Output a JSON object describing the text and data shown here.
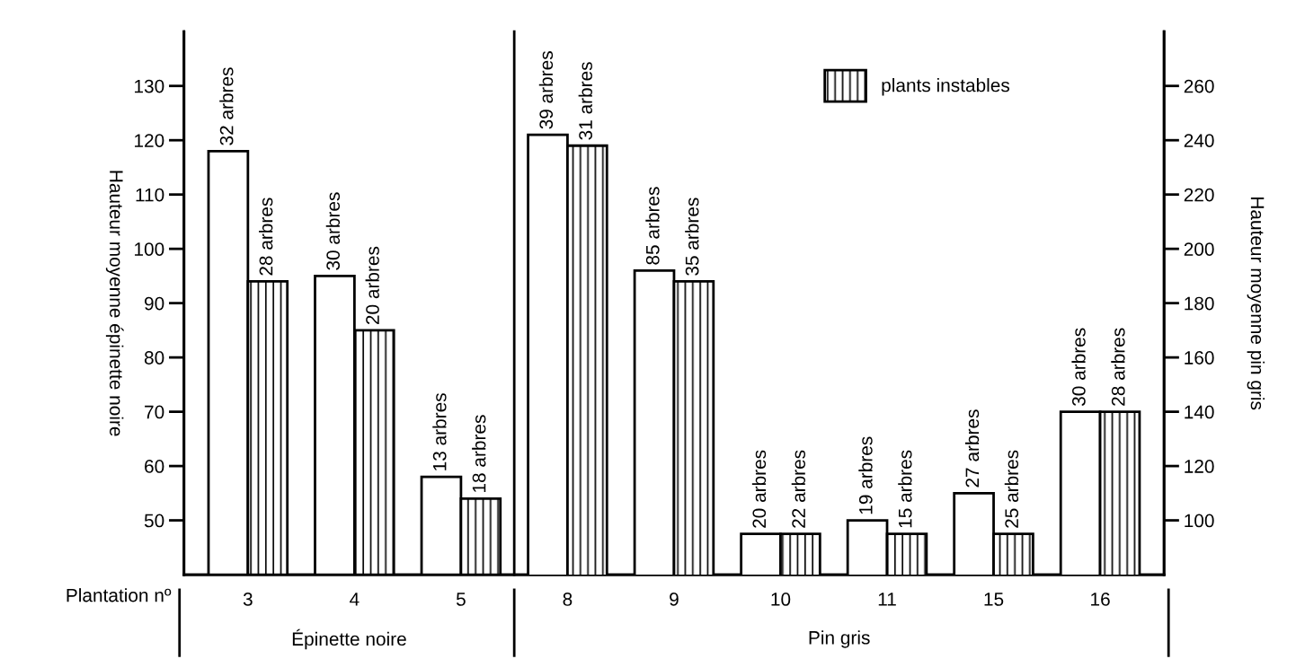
{
  "chart_data": {
    "type": "bar",
    "ylabel": "Hauteur moyenne épinette noire",
    "y2label": "Hauteur moyenne pin gris",
    "categories": [
      "3",
      "4",
      "5",
      "8",
      "9",
      "10",
      "11",
      "15",
      "16"
    ],
    "series": [
      {
        "color": "#ffffff",
        "axis": "y",
        "values": [
          118,
          95,
          58,
          null,
          null,
          null,
          null,
          null,
          null
        ]
      },
      {
        "name": "plants instables",
        "color": "#000000",
        "axis": "y",
        "values": [
          94,
          85,
          54,
          null,
          null,
          null,
          null,
          null,
          null
        ]
      },
      {
        "color": "#ffffff",
        "axis": "y2",
        "values": [
          null,
          null,
          null,
          242,
          192,
          95,
          100,
          110,
          140
        ]
      },
      {
        "color": "#000000",
        "axis": "y2",
        "values": [
          null,
          null,
          null,
          238,
          188,
          95,
          95,
          95,
          140
        ]
      }
    ],
    "ylim": [
      40,
      140
    ],
    "yticks": [
      50,
      60,
      70,
      80,
      90,
      100,
      110,
      120,
      130
    ],
    "y2lim": [
      80,
      280
    ],
    "y2ticks": [
      100,
      120,
      140,
      160,
      180,
      200,
      220,
      240,
      260
    ],
    "annotations": [
      "Plantation nº",
      "Épinette noire",
      "Pin gris",
      "32 arbres",
      "28 arbres",
      "30 arbres",
      "20 arbres",
      "13 arbres",
      "18 arbres",
      "39 arbres",
      "31 arbres",
      "85 arbres",
      "35 arbres",
      "20 arbres",
      "22 arbres",
      "19 arbres",
      "15 arbres",
      "27 arbres",
      "25 arbres",
      "30 arbres",
      "28 arbres"
    ],
    "legend": "top right",
    "grid": false
  }
}
